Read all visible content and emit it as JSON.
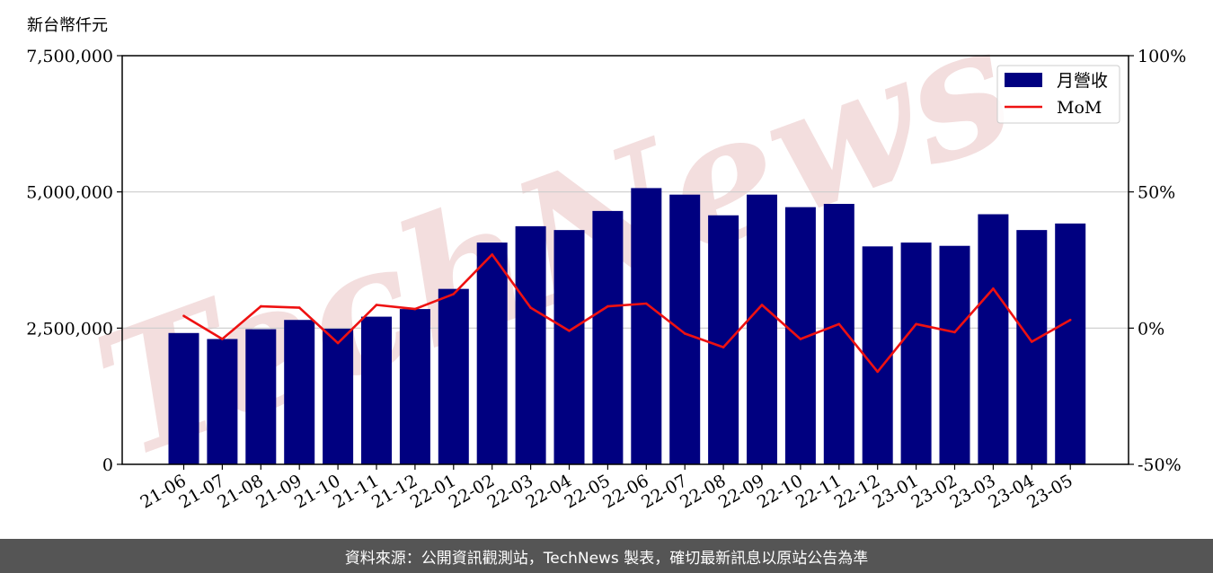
{
  "unit_label": "新台幣仟元",
  "watermark": "TechNews",
  "footer_text": "資料來源：公開資訊觀測站，TechNews 製表，確切最新訊息以原站公告為準",
  "colors": {
    "bar": "#000080",
    "line": "#ee1111",
    "footer_bg": "#555555"
  },
  "chart_data": {
    "type": "bar",
    "categories": [
      "21-06",
      "21-07",
      "21-08",
      "21-09",
      "21-10",
      "21-11",
      "21-12",
      "22-01",
      "22-02",
      "22-03",
      "22-04",
      "22-05",
      "22-06",
      "22-07",
      "22-08",
      "22-09",
      "22-10",
      "22-11",
      "22-12",
      "23-01",
      "23-02",
      "23-03",
      "23-04",
      "23-05"
    ],
    "series": [
      {
        "name": "月營收",
        "type": "bar",
        "axis": "left",
        "values": [
          2410000,
          2300000,
          2480000,
          2650000,
          2490000,
          2710000,
          2850000,
          3220000,
          4070000,
          4370000,
          4300000,
          4650000,
          5070000,
          4950000,
          4570000,
          4950000,
          4720000,
          4780000,
          4000000,
          4070000,
          4010000,
          4590000,
          4300000,
          4420000
        ]
      },
      {
        "name": "MoM",
        "type": "line",
        "axis": "right",
        "values": [
          4.5,
          -4.0,
          8.0,
          7.5,
          -5.5,
          8.5,
          7.0,
          12.5,
          27.0,
          7.5,
          -1.0,
          8.0,
          9.0,
          -2.0,
          -7.0,
          8.5,
          -4.0,
          1.5,
          -16.0,
          1.5,
          -1.5,
          14.5,
          -5.0,
          3.0
        ]
      }
    ],
    "ylim_left": [
      0,
      7500000
    ],
    "ylim_right": [
      -50,
      100
    ],
    "yticks_left": [
      "0",
      "2,500,000",
      "5,000,000",
      "7,500,000"
    ],
    "yticks_right": [
      "-50%",
      "0%",
      "50%",
      "100%"
    ],
    "grid": "horizontal",
    "legend_position": "top-right"
  }
}
